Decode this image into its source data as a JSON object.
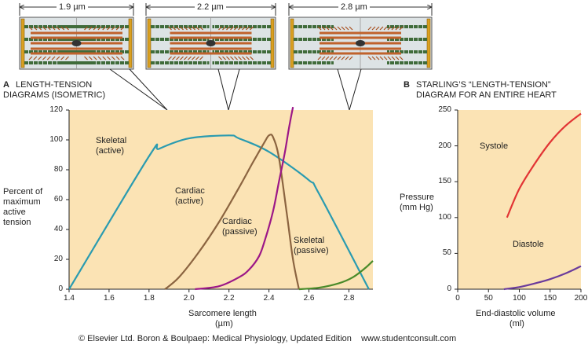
{
  "sarcomeres": [
    {
      "label": "1.9 µm"
    },
    {
      "label": "2.2 µm"
    },
    {
      "label": "2.8 µm"
    }
  ],
  "panel_a": {
    "letter": "A",
    "title_line1": "LENGTH-TENSION",
    "title_line2": "DIAGRAMS (ISOMETRIC)"
  },
  "panel_b": {
    "letter": "B",
    "title_line1": "STARLING’S “LENGTH-TENSION”",
    "title_line2": "DIAGRAM FOR AN ENTIRE HEART"
  },
  "footer": "© Elsevier Ltd. Boron & Boulpaep: Medical Physiology, Updated Edition    www.studentconsult.com",
  "colors": {
    "plot_bg": "#fbe3b4",
    "skeletal_active": "#2a9bb0",
    "cardiac_active": "#8b6440",
    "cardiac_passive": "#9c1787",
    "skeletal_passive": "#4a8b2a",
    "systole": "#e23434",
    "diastole": "#6a3b9c"
  },
  "chart_data": [
    {
      "type": "line",
      "xlabel_line1": "Sarcomere length",
      "xlabel_line2": "(µm)",
      "ylabel_lines": [
        "Percent of",
        "maximum",
        "active",
        "tension"
      ],
      "xlim": [
        1.4,
        2.92
      ],
      "ylim": [
        0,
        120
      ],
      "xticks": [
        1.4,
        1.6,
        1.8,
        2.0,
        2.2,
        2.4,
        2.6,
        2.8
      ],
      "yticks": [
        0,
        20,
        40,
        60,
        80,
        100,
        120
      ],
      "xtick_labels": [
        "1.4",
        "1.6",
        "1.8",
        "2.0",
        "2.2",
        "2.4",
        "2.6",
        "2.8"
      ],
      "ytick_labels": [
        "0",
        "20",
        "40",
        "60",
        "80",
        "100",
        "120"
      ],
      "grid": false,
      "series": [
        {
          "name": "Skeletal (active)",
          "label_line1": "Skeletal",
          "label_line2": "(active)",
          "color_key": "skeletal_active",
          "x": [
            1.4,
            1.8,
            1.85,
            2.0,
            2.2,
            2.25,
            2.4,
            2.6,
            2.65,
            2.9
          ],
          "y": [
            0,
            89,
            94,
            101,
            103,
            101,
            92,
            73,
            64,
            0
          ]
        },
        {
          "name": "Cardiac (active)",
          "label_line1": "Cardiac",
          "label_line2": "(active)",
          "color_key": "cardiac_active",
          "x": [
            1.88,
            1.95,
            2.05,
            2.15,
            2.25,
            2.32,
            2.38,
            2.4,
            2.42,
            2.45,
            2.49,
            2.52,
            2.55
          ],
          "y": [
            0,
            8,
            25,
            45,
            68,
            85,
            99,
            103,
            102,
            88,
            50,
            20,
            0
          ]
        },
        {
          "name": "Cardiac (passive)",
          "label_line1": "Cardiac",
          "label_line2": "(passive)",
          "color_key": "cardiac_passive",
          "x": [
            2.03,
            2.15,
            2.25,
            2.3,
            2.35,
            2.38,
            2.42,
            2.45,
            2.48,
            2.5,
            2.52
          ],
          "y": [
            0,
            2,
            8,
            13,
            22,
            33,
            52,
            72,
            92,
            108,
            122
          ]
        },
        {
          "name": "Skeletal (passive)",
          "label_line1": "Skeletal",
          "label_line2": "(passive)",
          "color_key": "skeletal_passive",
          "x": [
            2.55,
            2.65,
            2.75,
            2.82,
            2.88,
            2.92
          ],
          "y": [
            0,
            1,
            4,
            8,
            14,
            19
          ]
        }
      ]
    },
    {
      "type": "line",
      "xlabel": "End-diastolic volume",
      "xunit": "(ml)",
      "ylabel_line1": "Pressure",
      "ylabel_line2": "(mm Hg)",
      "xlim": [
        0,
        200
      ],
      "ylim": [
        0,
        250
      ],
      "xticks": [
        0,
        50,
        100,
        150,
        200
      ],
      "yticks": [
        0,
        50,
        100,
        150,
        200,
        250
      ],
      "xtick_labels": [
        "0",
        "50",
        "100",
        "150",
        "200"
      ],
      "ytick_labels": [
        "0",
        "50",
        "100",
        "150",
        "200",
        "250"
      ],
      "grid": false,
      "series": [
        {
          "name": "Systole",
          "color_key": "systole",
          "x": [
            80,
            100,
            125,
            150,
            175,
            200
          ],
          "y": [
            100,
            140,
            175,
            205,
            228,
            245
          ]
        },
        {
          "name": "Diastole",
          "color_key": "diastole",
          "x": [
            75,
            100,
            125,
            150,
            175,
            200
          ],
          "y": [
            0,
            3,
            8,
            14,
            22,
            32
          ]
        }
      ]
    }
  ]
}
